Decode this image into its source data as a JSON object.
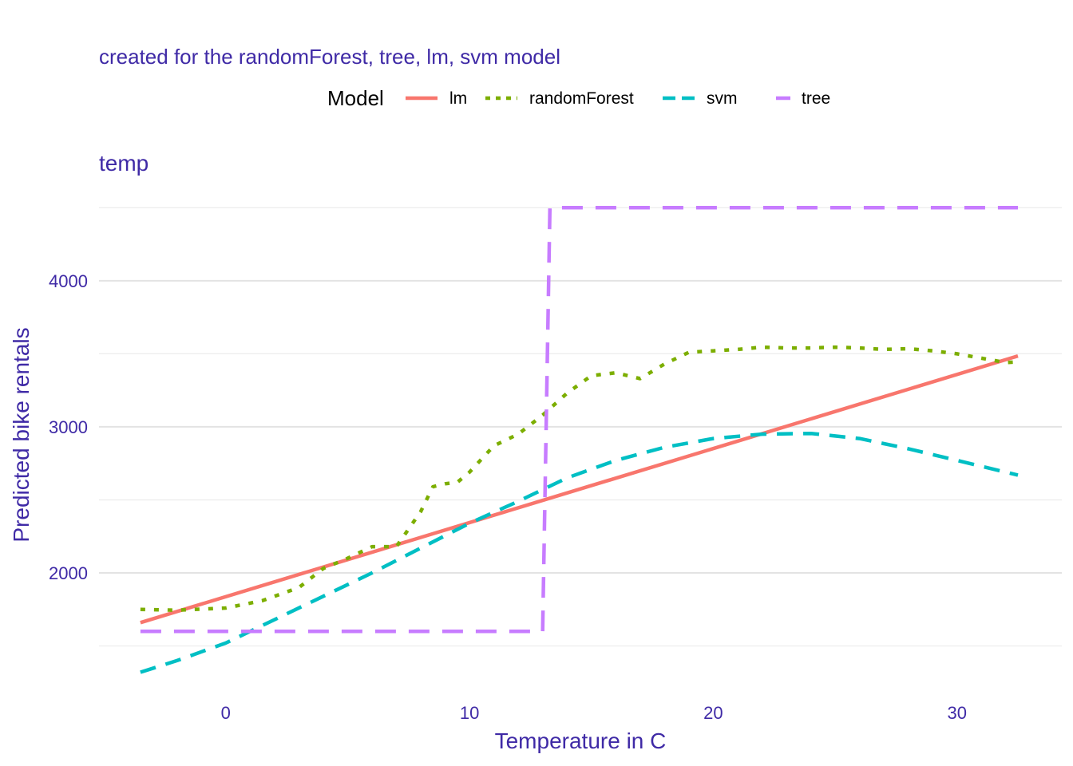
{
  "subtitle": "created for the randomForest, tree, lm, svm model",
  "legend": {
    "title": "Model",
    "entries": [
      {
        "label": "lm",
        "color": "#f8766d",
        "dash": "solid"
      },
      {
        "label": "randomForest",
        "color": "#7cae00",
        "dash": "dotted"
      },
      {
        "label": "svm",
        "color": "#00bfc4",
        "dash": "dashed"
      },
      {
        "label": "tree",
        "color": "#c77cff",
        "dash": "longdash"
      }
    ]
  },
  "chart_data": {
    "type": "line",
    "title": "temp",
    "xlabel": "Temperature in C",
    "ylabel": "Predicted bike rentals",
    "xlim": [
      -5.2,
      34.3
    ],
    "ylim": [
      1170,
      4720
    ],
    "x_ticks": [
      0,
      10,
      20,
      30
    ],
    "x_tick_labels": [
      "0",
      "10",
      "20",
      "30"
    ],
    "y_ticks": [
      2000,
      3000,
      4000
    ],
    "y_tick_labels": [
      "2000",
      "3000",
      "4000"
    ],
    "y_minor_ticks": [
      1500,
      2500,
      3500,
      4500
    ],
    "grid": true,
    "legend_position": "top",
    "series": [
      {
        "name": "lm",
        "color": "#f8766d",
        "x": [
          -3.5,
          32.5
        ],
        "y": [
          1660,
          3485
        ]
      },
      {
        "name": "randomForest",
        "color": "#7cae00",
        "x": [
          -3.5,
          -2,
          0,
          1.5,
          3,
          4,
          5,
          6,
          7,
          8,
          8.5,
          9,
          9.5,
          10,
          11,
          12,
          13,
          14,
          15,
          16,
          17,
          18,
          19,
          20,
          21,
          22,
          23,
          24,
          25,
          26,
          27,
          28,
          29,
          30,
          31,
          32,
          32.5
        ],
        "y": [
          1750,
          1745,
          1760,
          1810,
          1900,
          2030,
          2100,
          2180,
          2180,
          2420,
          2590,
          2610,
          2620,
          2690,
          2870,
          2950,
          3080,
          3230,
          3350,
          3370,
          3330,
          3430,
          3510,
          3520,
          3530,
          3545,
          3540,
          3540,
          3545,
          3540,
          3530,
          3535,
          3520,
          3500,
          3470,
          3440,
          3445
        ]
      },
      {
        "name": "svm",
        "color": "#00bfc4",
        "x": [
          -3.5,
          -2,
          0,
          2,
          4,
          6,
          8,
          10,
          12,
          14,
          16,
          18,
          20,
          22,
          24,
          26,
          28,
          30,
          32.5
        ],
        "y": [
          1320,
          1400,
          1520,
          1680,
          1840,
          2000,
          2170,
          2340,
          2490,
          2650,
          2770,
          2860,
          2920,
          2950,
          2955,
          2920,
          2850,
          2770,
          2670
        ]
      },
      {
        "name": "tree",
        "color": "#c77cff",
        "x": [
          -3.5,
          12.6,
          13,
          13.3,
          32.5
        ],
        "y": [
          1600,
          1600,
          1600,
          4500,
          4500
        ]
      }
    ]
  }
}
